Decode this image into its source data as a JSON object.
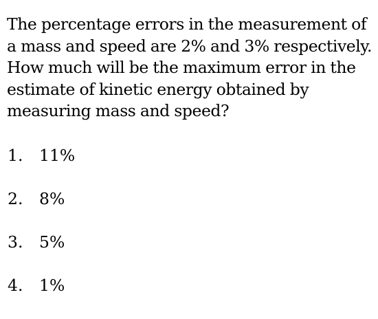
{
  "question": "The percentage errors in the measurement of a mass and speed are 2% and 3% respectively. How much will be the maximum error in the estimate of kinetic energy obtained by measuring mass and speed?",
  "options": [
    {
      "number": "1.",
      "text": "11%"
    },
    {
      "number": "2.",
      "text": "8%"
    },
    {
      "number": "3.",
      "text": "5%"
    },
    {
      "number": "4.",
      "text": "1%"
    }
  ]
}
